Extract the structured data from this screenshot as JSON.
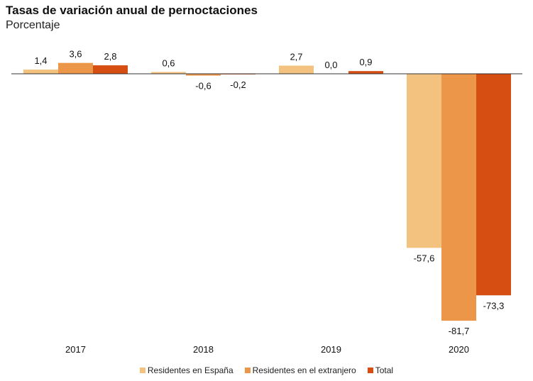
{
  "chart_data": {
    "type": "bar",
    "title": "Tasas de variación anual de pernoctaciones",
    "subtitle": "Porcentaje",
    "categories": [
      "2017",
      "2018",
      "2019",
      "2020"
    ],
    "series": [
      {
        "name": "Residentes en España",
        "color": "#F3C27F",
        "values": [
          1.4,
          0.6,
          2.7,
          -57.6
        ],
        "labels": [
          "1,4",
          "0,6",
          "2,7",
          "-57,6"
        ]
      },
      {
        "name": "Residentes en el extranjero",
        "color": "#EC964A",
        "values": [
          3.6,
          -0.6,
          0.0,
          -81.7
        ],
        "labels": [
          "3,6",
          "-0,6",
          "0,0",
          "-81,7"
        ]
      },
      {
        "name": "Total",
        "color": "#D64E12",
        "values": [
          2.8,
          -0.2,
          0.9,
          -73.3
        ],
        "labels": [
          "2,8",
          "-0,2",
          "0,9",
          "-73,3"
        ]
      }
    ],
    "ylim": [
      -85,
      5
    ],
    "grid": false,
    "legend": "bottom"
  }
}
